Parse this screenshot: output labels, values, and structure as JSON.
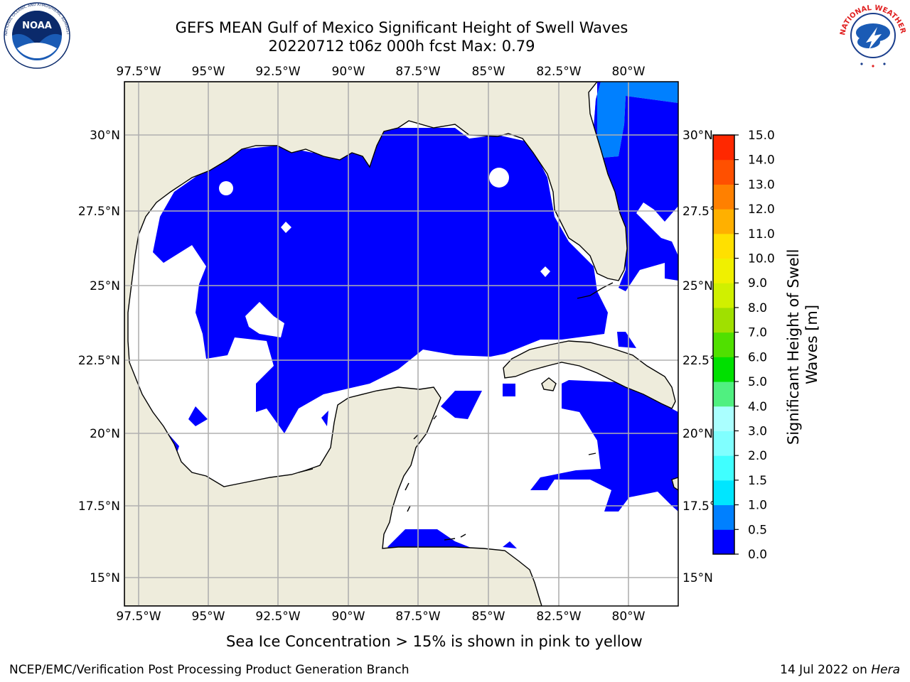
{
  "title_line1": "GEFS MEAN Gulf of Mexico Significant Height of Swell Waves",
  "title_line2": "20220712 t06z 000h fcst   Max: 0.79",
  "logos": {
    "left": {
      "name": "noaa-logo",
      "text": "NOAA",
      "ring_text": "NATIONAL OCEANIC AND ATMOSPHERIC ADMINISTRATION · U.S. DEPARTMENT OF COMMERCE"
    },
    "right": {
      "name": "nws-logo",
      "ring_text": "NATIONAL WEATHER SERVICE"
    }
  },
  "longitude_labels": [
    "97.5°W",
    "95°W",
    "92.5°W",
    "90°W",
    "87.5°W",
    "85°W",
    "82.5°W",
    "80°W"
  ],
  "latitude_labels": [
    "30°N",
    "27.5°N",
    "25°N",
    "22.5°N",
    "20°N",
    "17.5°N",
    "15°N"
  ],
  "colorbar": {
    "label": "Significant Height of Swell Waves [m]",
    "label_line1": "Significant Height of Swell",
    "label_line2": "Waves [m]",
    "ticks": [
      "0.0",
      "0.5",
      "1.0",
      "1.5",
      "2.0",
      "3.0",
      "4.0",
      "5.0",
      "6.0",
      "7.0",
      "8.0",
      "9.0",
      "10.0",
      "11.0",
      "12.0",
      "13.0",
      "14.0",
      "15.0"
    ],
    "colors": [
      "#0000ff",
      "#0080ff",
      "#00e6ff",
      "#40ffff",
      "#80ffff",
      "#aaffff",
      "#50f080",
      "#00e000",
      "#50e000",
      "#a0e000",
      "#d0f000",
      "#f0f000",
      "#ffe000",
      "#ffb000",
      "#ff8000",
      "#ff5000",
      "#ff2800",
      "#ff0000"
    ]
  },
  "colors": {
    "land": "#eeecdc",
    "swell_0_0p5": "#0000ff",
    "swell_0p5_1": "#0080ff",
    "grid": "#b0b0b0"
  },
  "sea_ice_note": "Sea Ice Concentration > 15% is shown in pink to yellow",
  "footer": {
    "credit": "NCEP/EMC/Verification Post Processing Product Generation Branch",
    "date": "14 Jul 2022 on",
    "host": "Hera"
  }
}
